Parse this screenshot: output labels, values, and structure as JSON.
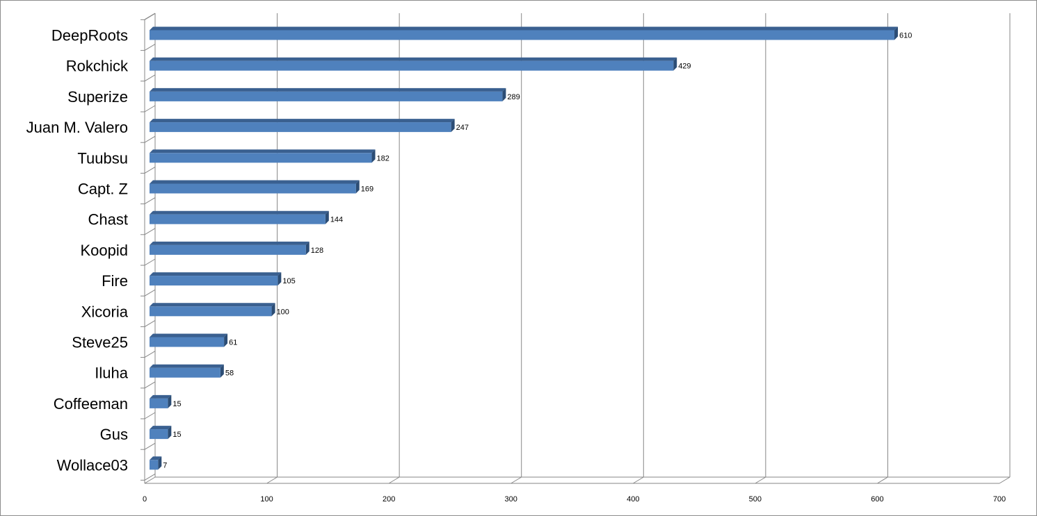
{
  "chart_data": {
    "type": "bar",
    "orientation": "horizontal",
    "style": "3d",
    "title": "",
    "xlabel": "",
    "ylabel": "",
    "categories": [
      "DeepRoots",
      "Rokchick",
      "Superize",
      "Juan M. Valero",
      "Tuubsu",
      "Capt. Z",
      "Chast",
      "Koopid",
      "Fire",
      "Xicoria",
      "Steve25",
      "Iluha",
      "Coffeeman",
      "Gus",
      "Wollace03"
    ],
    "series": [
      {
        "values": [
          610,
          429,
          289,
          247,
          182,
          169,
          144,
          128,
          105,
          100,
          61,
          58,
          15,
          15,
          7
        ]
      }
    ],
    "xlim": [
      0,
      700
    ],
    "xticks": [
      "0",
      "100",
      "200",
      "300",
      "400",
      "500",
      "600",
      "700"
    ],
    "grid": true,
    "legend": "none",
    "data_labels": true,
    "colors": {
      "bar_front": "#4f81bd",
      "bar_top": "#3a6090",
      "bar_side": "#2c4d75",
      "grid": "#868686",
      "frame": "#8c8c8c"
    }
  }
}
